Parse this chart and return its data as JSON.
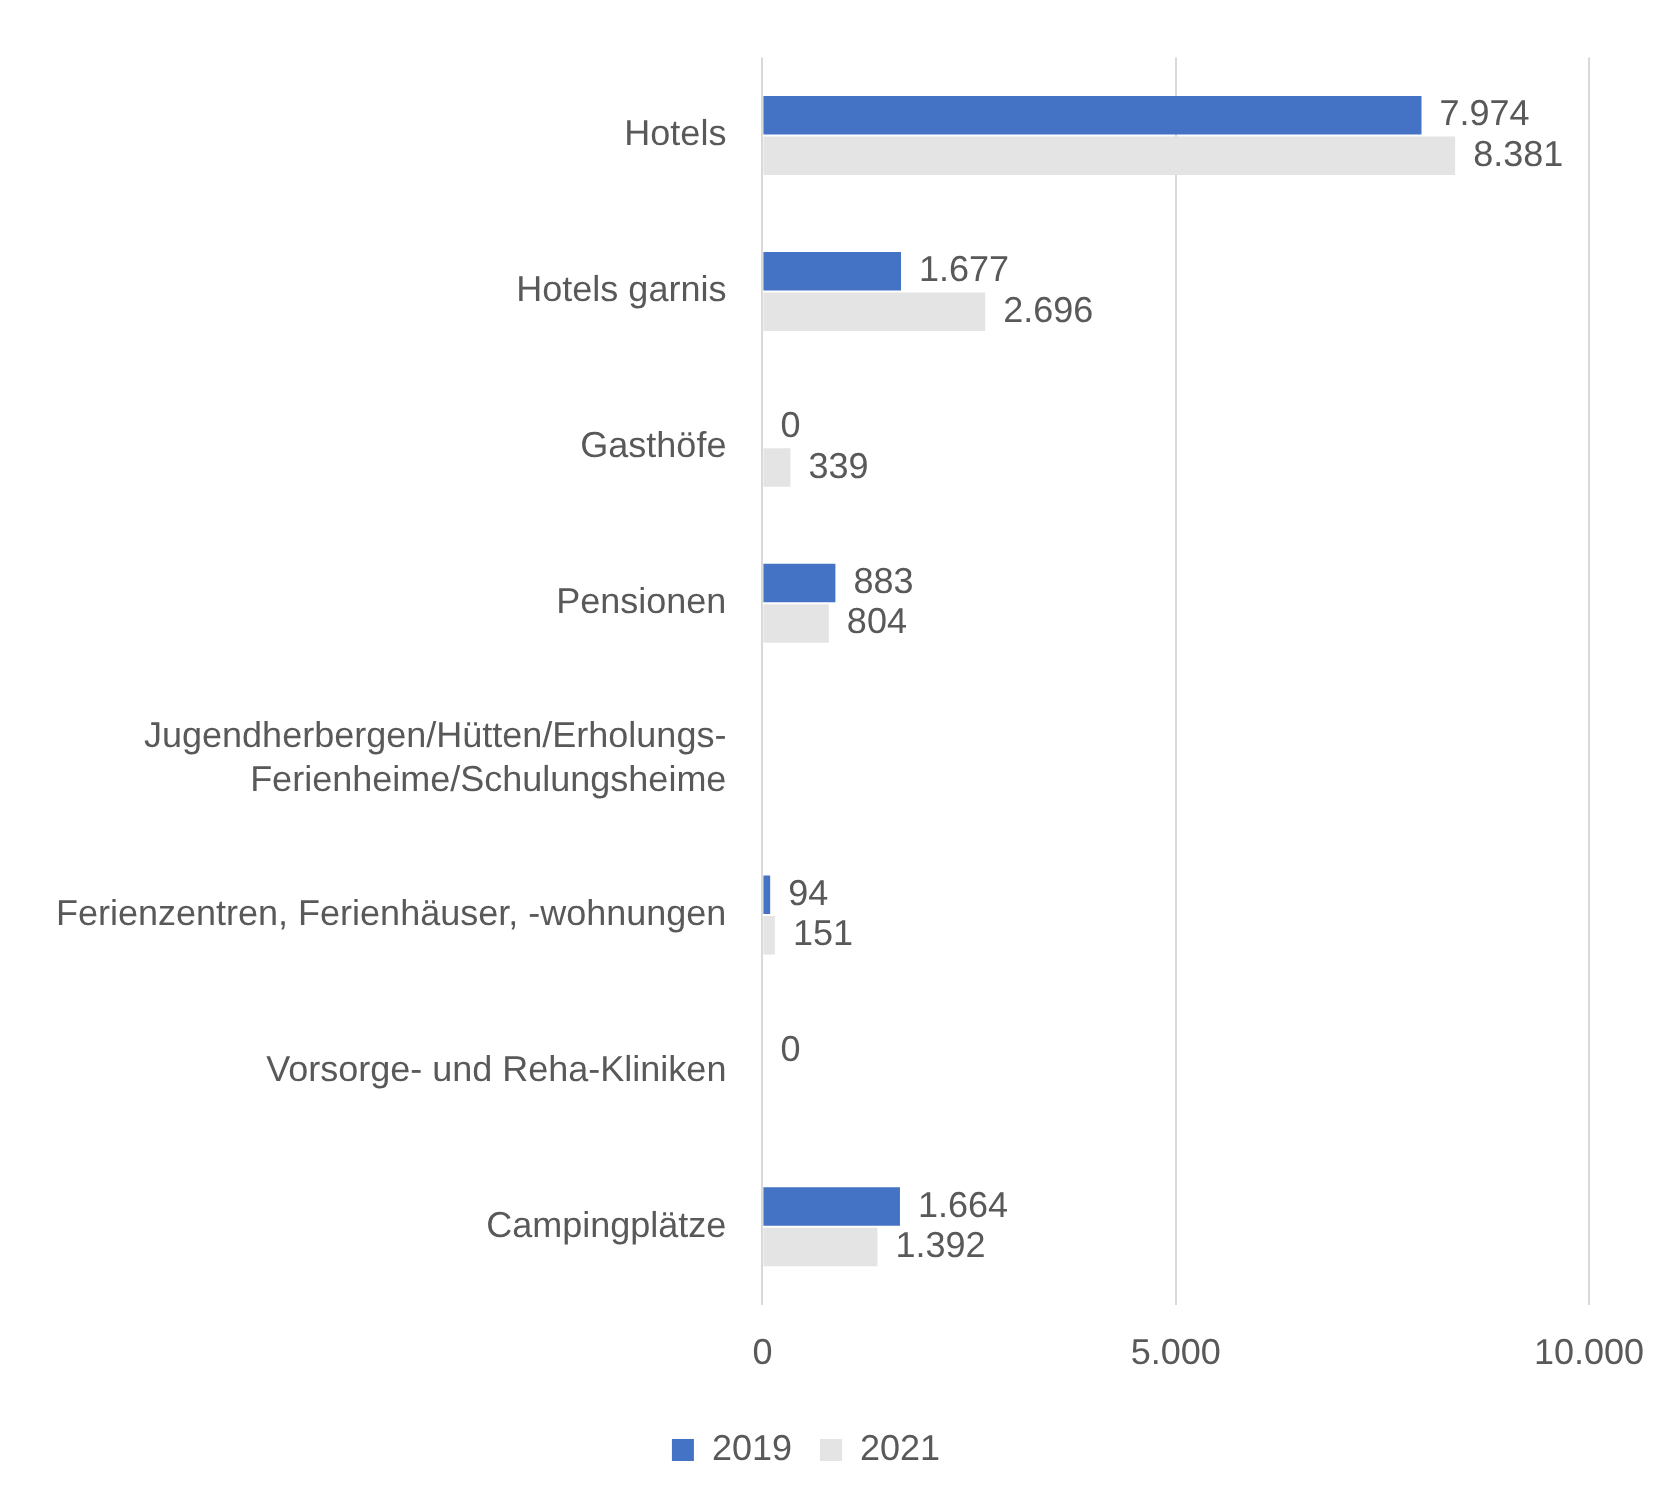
{
  "chart_data": {
    "type": "bar",
    "orientation": "horizontal",
    "categories": [
      "Hotels",
      "Hotels garnis",
      "Gasthöfe",
      "Pensionen",
      "Jugendherbergen/Hütten/Erholungs-Ferienheime/Schulungsheime",
      "Ferienzentren, Ferienhäuser, -wohnungen",
      "Vorsorge- und Reha-Kliniken",
      "Campingplätze"
    ],
    "series": [
      {
        "name": "2019",
        "color": "#4472c4",
        "values": [
          7974,
          1677,
          0,
          883,
          null,
          94,
          0,
          1664
        ],
        "value_labels": [
          "7.974",
          "1.677",
          "0",
          "883",
          null,
          "94",
          "0",
          "1.664"
        ]
      },
      {
        "name": "2021",
        "color": "#e4e4e4",
        "values": [
          8381,
          2696,
          339,
          804,
          null,
          151,
          null,
          1392
        ],
        "value_labels": [
          "8.381",
          "2.696",
          "339",
          "804",
          null,
          "151",
          null,
          "1.392"
        ]
      }
    ],
    "xlim": [
      0,
      10000
    ],
    "xticks": [
      {
        "value": 0,
        "label": "0"
      },
      {
        "value": 5000,
        "label": "5.000"
      },
      {
        "value": 10000,
        "label": "10.000"
      }
    ],
    "grid": "x",
    "legend": "bottom"
  }
}
